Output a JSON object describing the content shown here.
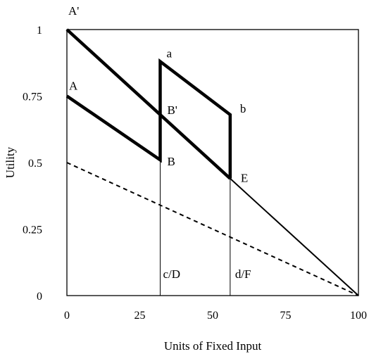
{
  "chart_data": {
    "type": "line",
    "xlabel": "Units of Fixed Input",
    "ylabel": "Utility",
    "xlim": [
      0,
      100
    ],
    "ylim": [
      0,
      1
    ],
    "x_ticks": [
      "0",
      "25",
      "50",
      "75",
      "100"
    ],
    "y_ticks": [
      "0",
      "0.25",
      "0.5",
      "0.75",
      "1"
    ],
    "grid": false,
    "legend": "none",
    "series": [
      {
        "style": "thick",
        "x": [
          0,
          32,
          32,
          56,
          56
        ],
        "y": [
          0.75,
          0.51,
          0.88,
          0.68,
          0.44
        ]
      },
      {
        "style": "thick",
        "x": [
          0,
          56
        ],
        "y": [
          1.0,
          0.44
        ]
      },
      {
        "style": "thin",
        "x": [
          56,
          100
        ],
        "y": [
          0.44,
          0.0
        ]
      },
      {
        "style": "dashed",
        "x": [
          0,
          100
        ],
        "y": [
          0.5,
          0.0
        ]
      }
    ],
    "vlines": [
      {
        "x": 32,
        "y_top": 0.51
      },
      {
        "x": 56,
        "y_top": 0.44
      }
    ],
    "point_labels": [
      {
        "text": "A'",
        "x": 0,
        "y": 1.0
      },
      {
        "text": "A",
        "x": 0,
        "y": 0.75
      },
      {
        "text": "a",
        "x": 32,
        "y": 0.88
      },
      {
        "text": "B'",
        "x": 32,
        "y": 0.68
      },
      {
        "text": "B",
        "x": 32,
        "y": 0.51
      },
      {
        "text": "b",
        "x": 56,
        "y": 0.68
      },
      {
        "text": "E",
        "x": 56,
        "y": 0.44
      },
      {
        "text": "c/D",
        "x": 32,
        "y": 0.04
      },
      {
        "text": "d/F",
        "x": 56,
        "y": 0.04
      }
    ]
  }
}
